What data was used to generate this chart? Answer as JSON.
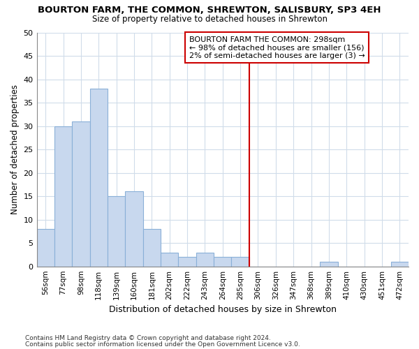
{
  "title": "BOURTON FARM, THE COMMON, SHREWTON, SALISBURY, SP3 4EH",
  "subtitle": "Size of property relative to detached houses in Shrewton",
  "xlabel": "Distribution of detached houses by size in Shrewton",
  "ylabel": "Number of detached properties",
  "footnote1": "Contains HM Land Registry data © Crown copyright and database right 2024.",
  "footnote2": "Contains public sector information licensed under the Open Government Licence v3.0.",
  "categories": [
    "56sqm",
    "77sqm",
    "98sqm",
    "118sqm",
    "139sqm",
    "160sqm",
    "181sqm",
    "202sqm",
    "222sqm",
    "243sqm",
    "264sqm",
    "285sqm",
    "306sqm",
    "326sqm",
    "347sqm",
    "368sqm",
    "389sqm",
    "410sqm",
    "430sqm",
    "451sqm",
    "472sqm"
  ],
  "values": [
    8,
    30,
    31,
    38,
    15,
    16,
    8,
    3,
    2,
    3,
    2,
    2,
    0,
    0,
    0,
    0,
    1,
    0,
    0,
    0,
    1
  ],
  "bar_color": "#c8d8ee",
  "bar_edgecolor": "#8ab0d8",
  "ylim": [
    0,
    50
  ],
  "yticks": [
    0,
    5,
    10,
    15,
    20,
    25,
    30,
    35,
    40,
    45,
    50
  ],
  "property_label": "BOURTON FARM THE COMMON: 298sqm",
  "annotation_line1": "← 98% of detached houses are smaller (156)",
  "annotation_line2": "2% of semi-detached houses are larger (3) →",
  "vline_color": "#cc0000",
  "vline_x_index": 12,
  "annotation_box_color": "#cc0000",
  "background_color": "#ffffff",
  "grid_color": "#d0dcea"
}
